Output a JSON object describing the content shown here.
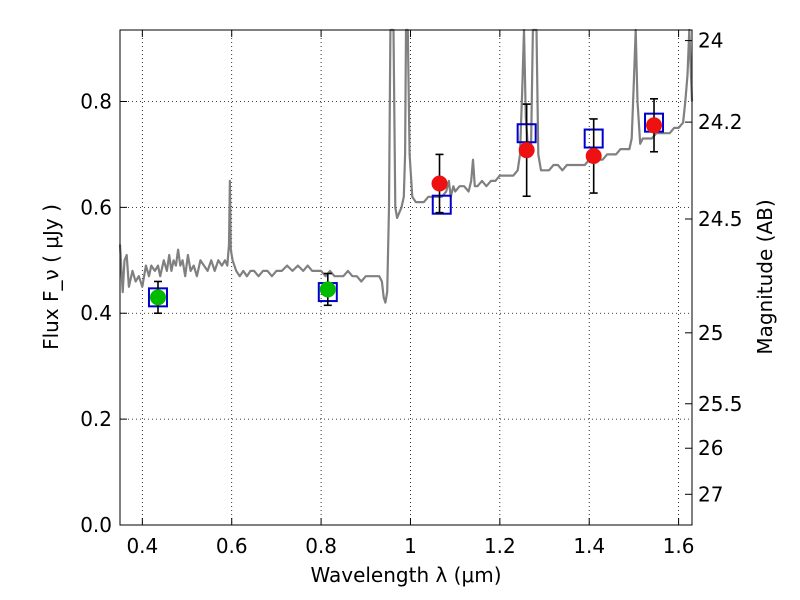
{
  "chart_data": {
    "type": "scatter",
    "xlabel": "Wavelength  λ (μm)",
    "ylabel": "Flux  F_ν  ( μJy )",
    "ylabel_right": "Magnitude (AB)",
    "xlim": [
      0.35,
      1.63
    ],
    "ylim": [
      0.0,
      0.935
    ],
    "grid": true,
    "x_ticks": [
      0.4,
      0.6,
      0.8,
      1.0,
      1.2,
      1.4,
      1.6
    ],
    "x_tick_labels": [
      "0.4",
      "0.6",
      "0.8",
      "1",
      "1.2",
      "1.4",
      "1.6"
    ],
    "y_ticks": [
      0.0,
      0.2,
      0.4,
      0.6,
      0.8
    ],
    "y_tick_labels": [
      "0.0",
      "0.2",
      "0.4",
      "0.6",
      "0.8"
    ],
    "right_ticks": [
      {
        "label": "24",
        "flux": 0.915
      },
      {
        "label": "24.2",
        "flux": 0.761
      },
      {
        "label": "24.5",
        "flux": 0.578
      },
      {
        "label": "25",
        "flux": 0.363
      },
      {
        "label": "25.5",
        "flux": 0.229
      },
      {
        "label": "26",
        "flux": 0.145
      },
      {
        "label": "27",
        "flux": 0.058
      }
    ],
    "series": [
      {
        "kind": "line",
        "color": "#808080",
        "points": [
          [
            0.35,
            0.53
          ],
          [
            0.356,
            0.44
          ],
          [
            0.36,
            0.5
          ],
          [
            0.365,
            0.51
          ],
          [
            0.37,
            0.45
          ],
          [
            0.378,
            0.48
          ],
          [
            0.385,
            0.46
          ],
          [
            0.392,
            0.47
          ],
          [
            0.4,
            0.45
          ],
          [
            0.408,
            0.49
          ],
          [
            0.415,
            0.47
          ],
          [
            0.42,
            0.49
          ],
          [
            0.428,
            0.48
          ],
          [
            0.435,
            0.49
          ],
          [
            0.44,
            0.47
          ],
          [
            0.448,
            0.5
          ],
          [
            0.455,
            0.48
          ],
          [
            0.46,
            0.51
          ],
          [
            0.465,
            0.48
          ],
          [
            0.47,
            0.5
          ],
          [
            0.475,
            0.49
          ],
          [
            0.48,
            0.52
          ],
          [
            0.485,
            0.49
          ],
          [
            0.49,
            0.5
          ],
          [
            0.496,
            0.47
          ],
          [
            0.502,
            0.51
          ],
          [
            0.508,
            0.48
          ],
          [
            0.515,
            0.49
          ],
          [
            0.522,
            0.47
          ],
          [
            0.53,
            0.5
          ],
          [
            0.538,
            0.49
          ],
          [
            0.546,
            0.48
          ],
          [
            0.554,
            0.5
          ],
          [
            0.562,
            0.48
          ],
          [
            0.57,
            0.5
          ],
          [
            0.578,
            0.49
          ],
          [
            0.585,
            0.5
          ],
          [
            0.59,
            0.49
          ],
          [
            0.594,
            0.53
          ],
          [
            0.596,
            0.65
          ],
          [
            0.598,
            0.52
          ],
          [
            0.602,
            0.5
          ],
          [
            0.61,
            0.48
          ],
          [
            0.618,
            0.47
          ],
          [
            0.626,
            0.48
          ],
          [
            0.634,
            0.47
          ],
          [
            0.642,
            0.48
          ],
          [
            0.65,
            0.48
          ],
          [
            0.66,
            0.47
          ],
          [
            0.67,
            0.48
          ],
          [
            0.68,
            0.48
          ],
          [
            0.69,
            0.47
          ],
          [
            0.7,
            0.48
          ],
          [
            0.712,
            0.48
          ],
          [
            0.724,
            0.49
          ],
          [
            0.736,
            0.48
          ],
          [
            0.748,
            0.49
          ],
          [
            0.76,
            0.48
          ],
          [
            0.77,
            0.49
          ],
          [
            0.78,
            0.48
          ],
          [
            0.79,
            0.48
          ],
          [
            0.8,
            0.48
          ],
          [
            0.81,
            0.47
          ],
          [
            0.82,
            0.48
          ],
          [
            0.83,
            0.47
          ],
          [
            0.84,
            0.47
          ],
          [
            0.85,
            0.47
          ],
          [
            0.86,
            0.48
          ],
          [
            0.87,
            0.47
          ],
          [
            0.88,
            0.47
          ],
          [
            0.89,
            0.46
          ],
          [
            0.9,
            0.47
          ],
          [
            0.91,
            0.47
          ],
          [
            0.92,
            0.47
          ],
          [
            0.93,
            0.47
          ],
          [
            0.936,
            0.46
          ],
          [
            0.94,
            0.43
          ],
          [
            0.944,
            0.42
          ],
          [
            0.948,
            0.44
          ],
          [
            0.952,
            0.6
          ],
          [
            0.955,
            0.935
          ],
          [
            0.958,
            0.935
          ],
          [
            0.962,
            0.935
          ],
          [
            0.966,
            0.6
          ],
          [
            0.97,
            0.58
          ],
          [
            0.975,
            0.59
          ],
          [
            0.98,
            0.6
          ],
          [
            0.985,
            0.62
          ],
          [
            0.988,
            0.7
          ],
          [
            0.99,
            0.935
          ],
          [
            0.994,
            0.935
          ],
          [
            0.998,
            0.7
          ],
          [
            1.004,
            0.62
          ],
          [
            1.012,
            0.61
          ],
          [
            1.02,
            0.61
          ],
          [
            1.03,
            0.61
          ],
          [
            1.04,
            0.62
          ],
          [
            1.05,
            0.62
          ],
          [
            1.06,
            0.62
          ],
          [
            1.07,
            0.62
          ],
          [
            1.08,
            0.63
          ],
          [
            1.086,
            0.65
          ],
          [
            1.09,
            0.62
          ],
          [
            1.096,
            0.64
          ],
          [
            1.1,
            0.63
          ],
          [
            1.11,
            0.64
          ],
          [
            1.12,
            0.64
          ],
          [
            1.13,
            0.63
          ],
          [
            1.136,
            0.65
          ],
          [
            1.14,
            0.69
          ],
          [
            1.144,
            0.64
          ],
          [
            1.15,
            0.64
          ],
          [
            1.16,
            0.65
          ],
          [
            1.17,
            0.64
          ],
          [
            1.18,
            0.65
          ],
          [
            1.19,
            0.65
          ],
          [
            1.2,
            0.66
          ],
          [
            1.21,
            0.66
          ],
          [
            1.22,
            0.66
          ],
          [
            1.23,
            0.66
          ],
          [
            1.24,
            0.67
          ],
          [
            1.245,
            0.7
          ],
          [
            1.25,
            0.82
          ],
          [
            1.254,
            0.935
          ],
          [
            1.258,
            0.77
          ],
          [
            1.264,
            0.7
          ],
          [
            1.27,
            0.72
          ],
          [
            1.274,
            0.935
          ],
          [
            1.278,
            0.935
          ],
          [
            1.282,
            0.935
          ],
          [
            1.286,
            0.7
          ],
          [
            1.292,
            0.67
          ],
          [
            1.3,
            0.67
          ],
          [
            1.31,
            0.67
          ],
          [
            1.32,
            0.68
          ],
          [
            1.33,
            0.68
          ],
          [
            1.34,
            0.67
          ],
          [
            1.35,
            0.68
          ],
          [
            1.36,
            0.68
          ],
          [
            1.37,
            0.68
          ],
          [
            1.38,
            0.68
          ],
          [
            1.39,
            0.68
          ],
          [
            1.4,
            0.69
          ],
          [
            1.41,
            0.69
          ],
          [
            1.42,
            0.69
          ],
          [
            1.43,
            0.69
          ],
          [
            1.44,
            0.7
          ],
          [
            1.45,
            0.7
          ],
          [
            1.46,
            0.7
          ],
          [
            1.47,
            0.71
          ],
          [
            1.48,
            0.71
          ],
          [
            1.49,
            0.71
          ],
          [
            1.495,
            0.73
          ],
          [
            1.5,
            0.84
          ],
          [
            1.504,
            0.935
          ],
          [
            1.508,
            0.8
          ],
          [
            1.514,
            0.72
          ],
          [
            1.52,
            0.73
          ],
          [
            1.53,
            0.73
          ],
          [
            1.54,
            0.73
          ],
          [
            1.55,
            0.74
          ],
          [
            1.56,
            0.74
          ],
          [
            1.57,
            0.74
          ],
          [
            1.58,
            0.74
          ],
          [
            1.59,
            0.75
          ],
          [
            1.6,
            0.75
          ],
          [
            1.61,
            0.76
          ],
          [
            1.615,
            0.8
          ],
          [
            1.62,
            0.85
          ],
          [
            1.624,
            0.935
          ],
          [
            1.63,
            0.8
          ]
        ]
      },
      {
        "kind": "open_squares",
        "color": "#0000cc",
        "points": [
          [
            0.435,
            0.43
          ],
          [
            0.815,
            0.44
          ],
          [
            1.07,
            0.605
          ],
          [
            1.26,
            0.74
          ],
          [
            1.41,
            0.73
          ],
          [
            1.545,
            0.76
          ]
        ]
      },
      {
        "kind": "filled_circles",
        "color": "#00bb00",
        "points": [
          {
            "x": 0.435,
            "y": 0.43,
            "err": 0.03
          },
          {
            "x": 0.815,
            "y": 0.445,
            "err": 0.03
          }
        ]
      },
      {
        "kind": "filled_circles",
        "color": "#ee1111",
        "points": [
          {
            "x": 1.065,
            "y": 0.645,
            "err": 0.055
          },
          {
            "x": 1.26,
            "y": 0.708,
            "err": 0.087
          },
          {
            "x": 1.41,
            "y": 0.697,
            "err": 0.07
          },
          {
            "x": 1.545,
            "y": 0.755,
            "err": 0.05
          }
        ]
      }
    ]
  }
}
